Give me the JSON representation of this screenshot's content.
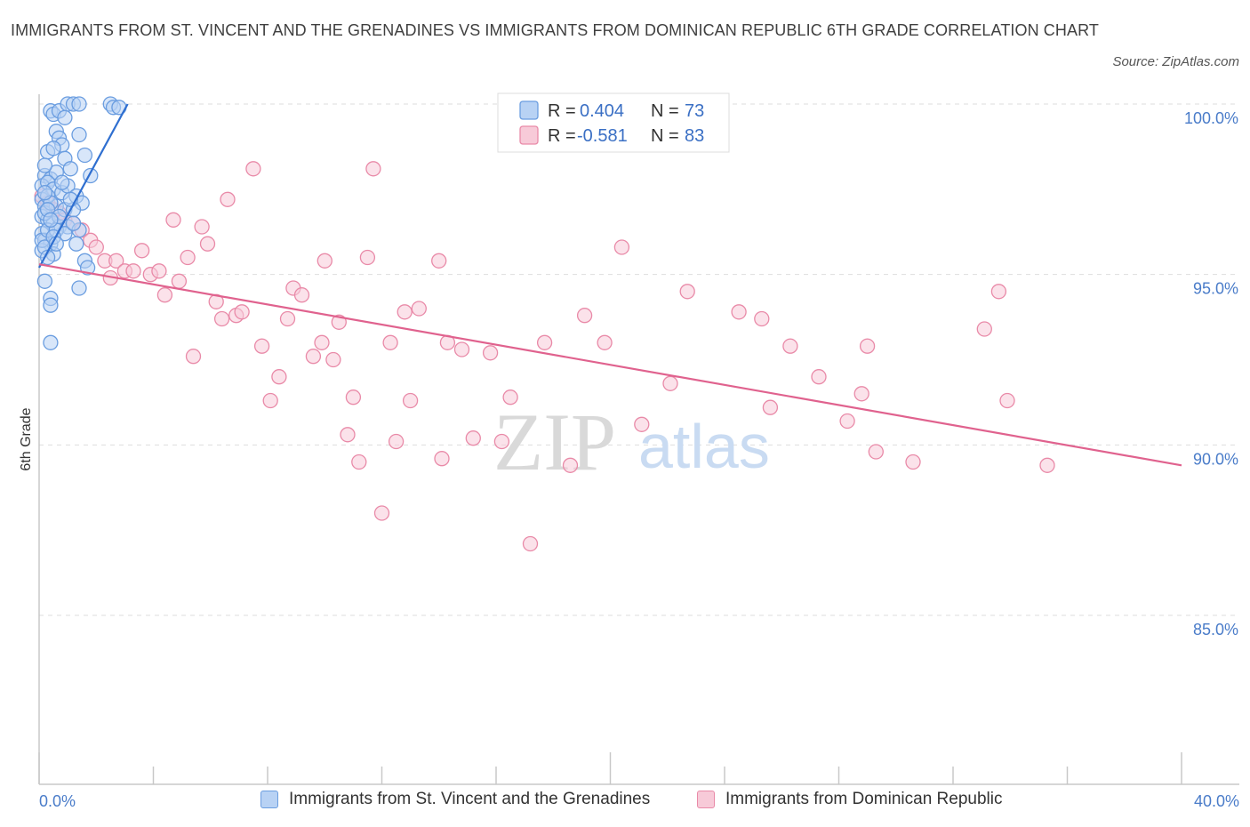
{
  "title": "IMMIGRANTS FROM ST. VINCENT AND THE GRENADINES VS IMMIGRANTS FROM DOMINICAN REPUBLIC 6TH GRADE CORRELATION CHART",
  "source": "Source: ZipAtlas.com",
  "colors": {
    "blue": "#6a9de0",
    "blue_fill": "#b8d2f4",
    "blue_line": "#2f6fd0",
    "pink": "#e98aa8",
    "pink_fill": "#f7cad8",
    "pink_line": "#e0628e",
    "grid": "#dddddd",
    "tick_text": "#4a7cc9"
  },
  "chart_data": {
    "type": "scatter",
    "title": "IMMIGRANTS FROM ST. VINCENT AND THE GRENADINES VS IMMIGRANTS FROM DOMINICAN REPUBLIC 6TH GRADE CORRELATION CHART",
    "xlabel": "",
    "ylabel": "6th Grade",
    "xlim": [
      0,
      40
    ],
    "ylim": [
      80.5,
      100.5
    ],
    "x_tick_labels": [
      "0.0%",
      "40.0%"
    ],
    "y_ticks": [
      {
        "value": 100,
        "label": "100.0%"
      },
      {
        "value": 95,
        "label": "95.0%"
      },
      {
        "value": 90,
        "label": "90.0%"
      },
      {
        "value": 85,
        "label": "85.0%"
      }
    ],
    "watermark": {
      "zip": "ZIP",
      "atlas": "atlas"
    },
    "legend": [
      {
        "r_label": "R =",
        "r_value": "0.404",
        "n_label": "N =",
        "n_value": "73"
      },
      {
        "r_label": "R =",
        "r_value": "-0.581",
        "n_label": "N =",
        "n_value": "83"
      }
    ],
    "series": [
      {
        "name": "Immigrants from St. Vincent and the Grenadines",
        "color": "blue",
        "trend": {
          "x": [
            0.0,
            3.1
          ],
          "y": [
            95.2,
            100.0
          ]
        },
        "points": [
          [
            0.4,
            99.8
          ],
          [
            0.5,
            99.7
          ],
          [
            0.7,
            99.8
          ],
          [
            1.0,
            100.0
          ],
          [
            1.2,
            100.0
          ],
          [
            1.4,
            100.0
          ],
          [
            2.5,
            100.0
          ],
          [
            2.6,
            99.9
          ],
          [
            2.8,
            99.9
          ],
          [
            0.9,
            99.6
          ],
          [
            0.6,
            99.2
          ],
          [
            0.7,
            99.0
          ],
          [
            1.4,
            99.1
          ],
          [
            0.8,
            98.8
          ],
          [
            0.3,
            98.6
          ],
          [
            0.5,
            98.7
          ],
          [
            0.9,
            98.4
          ],
          [
            1.6,
            98.5
          ],
          [
            0.2,
            97.9
          ],
          [
            0.4,
            97.8
          ],
          [
            0.6,
            98.0
          ],
          [
            1.8,
            97.9
          ],
          [
            0.1,
            97.6
          ],
          [
            0.3,
            97.7
          ],
          [
            0.5,
            97.5
          ],
          [
            0.8,
            97.4
          ],
          [
            1.0,
            97.6
          ],
          [
            1.3,
            97.3
          ],
          [
            1.5,
            97.1
          ],
          [
            0.1,
            97.2
          ],
          [
            0.2,
            97.0
          ],
          [
            0.6,
            97.0
          ],
          [
            0.9,
            96.9
          ],
          [
            0.1,
            96.7
          ],
          [
            0.3,
            96.6
          ],
          [
            0.5,
            96.5
          ],
          [
            0.7,
            96.4
          ],
          [
            1.0,
            96.4
          ],
          [
            1.4,
            96.3
          ],
          [
            0.1,
            96.2
          ],
          [
            0.2,
            96.0
          ],
          [
            0.4,
            95.9
          ],
          [
            1.3,
            95.9
          ],
          [
            0.1,
            95.7
          ],
          [
            0.5,
            95.6
          ],
          [
            1.6,
            95.4
          ],
          [
            1.7,
            95.2
          ],
          [
            0.2,
            94.8
          ],
          [
            1.4,
            94.6
          ],
          [
            0.4,
            94.3
          ],
          [
            0.4,
            94.1
          ],
          [
            0.4,
            93.0
          ],
          [
            0.2,
            96.8
          ],
          [
            0.3,
            97.3
          ],
          [
            0.1,
            96.0
          ],
          [
            0.2,
            95.8
          ],
          [
            0.3,
            96.3
          ],
          [
            0.6,
            96.3
          ],
          [
            1.2,
            96.9
          ],
          [
            0.4,
            97.1
          ],
          [
            0.8,
            97.7
          ],
          [
            1.1,
            97.2
          ],
          [
            0.2,
            98.2
          ],
          [
            0.3,
            96.9
          ],
          [
            0.7,
            96.7
          ],
          [
            0.9,
            96.2
          ],
          [
            1.1,
            98.1
          ],
          [
            0.5,
            96.1
          ],
          [
            0.3,
            95.5
          ],
          [
            1.2,
            96.5
          ],
          [
            0.2,
            97.4
          ],
          [
            0.6,
            95.9
          ],
          [
            0.4,
            96.6
          ]
        ]
      },
      {
        "name": "Immigrants from Dominican Republic",
        "color": "pink",
        "trend": {
          "x": [
            0.0,
            40.0
          ],
          "y": [
            95.3,
            89.4
          ]
        },
        "points": [
          [
            0.1,
            97.3
          ],
          [
            0.3,
            97.1
          ],
          [
            0.5,
            96.9
          ],
          [
            0.7,
            96.8
          ],
          [
            0.9,
            96.6
          ],
          [
            1.2,
            96.5
          ],
          [
            1.5,
            96.3
          ],
          [
            1.8,
            96.0
          ],
          [
            2.0,
            95.8
          ],
          [
            2.3,
            95.4
          ],
          [
            2.5,
            94.9
          ],
          [
            2.7,
            95.4
          ],
          [
            3.0,
            95.1
          ],
          [
            3.3,
            95.1
          ],
          [
            3.6,
            95.7
          ],
          [
            3.9,
            95.0
          ],
          [
            4.2,
            95.1
          ],
          [
            4.4,
            94.4
          ],
          [
            4.7,
            96.6
          ],
          [
            4.9,
            94.8
          ],
          [
            5.2,
            95.5
          ],
          [
            5.4,
            92.6
          ],
          [
            5.7,
            96.4
          ],
          [
            5.9,
            95.9
          ],
          [
            6.2,
            94.2
          ],
          [
            6.4,
            93.7
          ],
          [
            6.6,
            97.2
          ],
          [
            6.9,
            93.8
          ],
          [
            7.1,
            93.9
          ],
          [
            7.5,
            98.1
          ],
          [
            7.8,
            92.9
          ],
          [
            8.1,
            91.3
          ],
          [
            8.4,
            92.0
          ],
          [
            8.7,
            93.7
          ],
          [
            8.9,
            94.6
          ],
          [
            9.2,
            94.4
          ],
          [
            9.6,
            92.6
          ],
          [
            9.9,
            93.0
          ],
          [
            10.0,
            95.4
          ],
          [
            10.3,
            92.5
          ],
          [
            10.5,
            93.6
          ],
          [
            10.8,
            90.3
          ],
          [
            11.0,
            91.4
          ],
          [
            11.2,
            89.5
          ],
          [
            11.5,
            95.5
          ],
          [
            11.7,
            98.1
          ],
          [
            12.0,
            88.0
          ],
          [
            12.3,
            93.0
          ],
          [
            12.5,
            90.1
          ],
          [
            12.8,
            93.9
          ],
          [
            13.0,
            91.3
          ],
          [
            13.3,
            94.0
          ],
          [
            14.0,
            95.4
          ],
          [
            14.1,
            89.6
          ],
          [
            14.3,
            93.0
          ],
          [
            14.8,
            92.8
          ],
          [
            15.2,
            90.2
          ],
          [
            15.8,
            92.7
          ],
          [
            16.2,
            90.1
          ],
          [
            16.5,
            91.4
          ],
          [
            17.2,
            87.1
          ],
          [
            17.7,
            93.0
          ],
          [
            18.6,
            89.4
          ],
          [
            19.1,
            93.8
          ],
          [
            19.8,
            93.0
          ],
          [
            20.4,
            95.8
          ],
          [
            21.1,
            90.6
          ],
          [
            22.1,
            91.8
          ],
          [
            22.7,
            94.5
          ],
          [
            24.5,
            93.9
          ],
          [
            25.3,
            93.7
          ],
          [
            25.6,
            91.1
          ],
          [
            26.3,
            92.9
          ],
          [
            27.3,
            92.0
          ],
          [
            28.3,
            90.7
          ],
          [
            28.8,
            91.5
          ],
          [
            29.0,
            92.9
          ],
          [
            29.3,
            89.8
          ],
          [
            30.6,
            89.5
          ],
          [
            33.1,
            93.4
          ],
          [
            33.6,
            94.5
          ],
          [
            33.9,
            91.3
          ],
          [
            35.3,
            89.4
          ]
        ]
      }
    ]
  },
  "bottom_legend": {
    "blue_label": "Immigrants from St. Vincent and the Grenadines",
    "pink_label": "Immigrants from Dominican Republic"
  }
}
